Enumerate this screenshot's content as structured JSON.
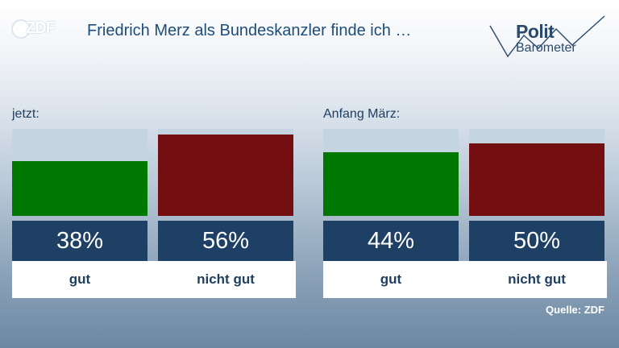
{
  "brand": {
    "logo_text": "ZDF"
  },
  "header": {
    "title": "Friedrich Merz als Bundeskanzler finde ich …",
    "politbarometer": {
      "line1": "Polit",
      "line2": "Barometer"
    }
  },
  "source": "Quelle: ZDF",
  "colors": {
    "positive": "#007800",
    "negative": "#730f10",
    "value_box": "#1f4065",
    "track": "#c5d4e1"
  },
  "chart_data": [
    {
      "type": "bar",
      "panel_label": "jetzt:",
      "categories": [
        "gut",
        "nicht gut"
      ],
      "values": [
        38,
        56
      ],
      "value_labels": [
        "38%",
        "56%"
      ],
      "ylim": [
        0,
        60
      ]
    },
    {
      "type": "bar",
      "panel_label": "Anfang März:",
      "categories": [
        "gut",
        "nicht gut"
      ],
      "values": [
        44,
        50
      ],
      "value_labels": [
        "44%",
        "50%"
      ],
      "ylim": [
        0,
        60
      ]
    }
  ]
}
